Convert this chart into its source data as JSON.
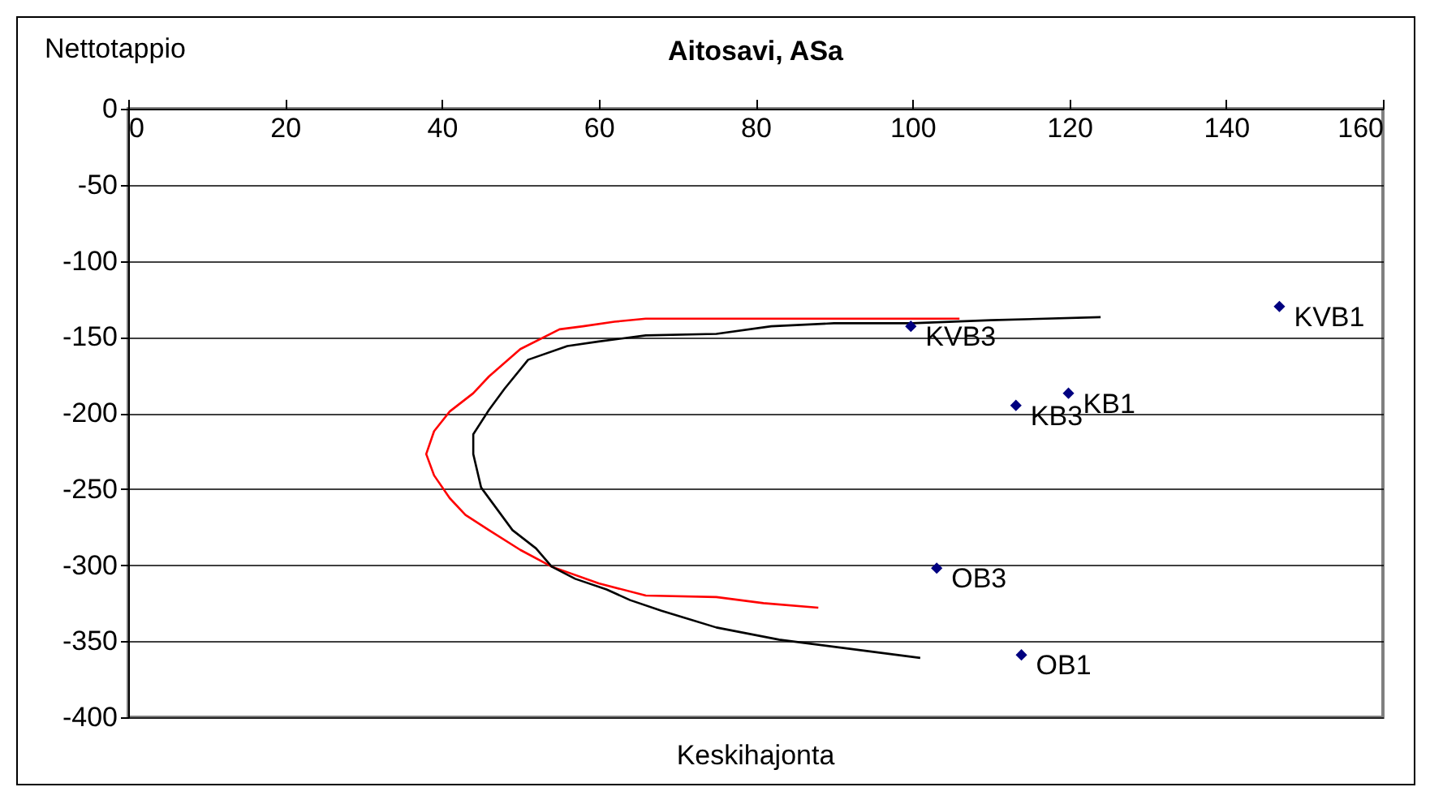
{
  "chart_data": {
    "type": "line",
    "title": "Aitosavi, ASa",
    "xlabel": "Keskihajonta",
    "ylabel": "Nettotappio",
    "xlim": [
      0,
      160
    ],
    "xticks": [
      0,
      20,
      40,
      60,
      80,
      100,
      120,
      140,
      160
    ],
    "ylim": [
      -400,
      0
    ],
    "yticks": [
      0,
      -50,
      -100,
      -150,
      -200,
      -250,
      -300,
      -350,
      -400
    ],
    "grid": "y",
    "series": [
      {
        "color": "#ff0000",
        "x": [
          106,
          100,
          90,
          80,
          71,
          66,
          62,
          58,
          55,
          50,
          46,
          44,
          41,
          39,
          38,
          39,
          41,
          43,
          46,
          50,
          54,
          60,
          66,
          75,
          81,
          88
        ],
        "values": [
          -138,
          -138,
          -138,
          -138,
          -138,
          -138,
          -140,
          -143,
          -145,
          -158,
          -176,
          -187,
          -199,
          -212,
          -227,
          -241,
          -256,
          -267,
          -277,
          -290,
          -301,
          -312,
          -320,
          -321,
          -325,
          -328
        ]
      },
      {
        "color": "#000000",
        "x": [
          124,
          110,
          100,
          90,
          82,
          75,
          66,
          60,
          56,
          51,
          48,
          46,
          44,
          44,
          44,
          45,
          47,
          49,
          52,
          54,
          57,
          61,
          64,
          68,
          75,
          83,
          92,
          101
        ],
        "values": [
          -137,
          -139,
          -141,
          -141,
          -143,
          -148,
          -149,
          -153,
          -156,
          -165,
          -184,
          -198,
          -214,
          -220,
          -227,
          -249,
          -263,
          -277,
          -289,
          -301,
          -309,
          -316,
          -323,
          -330,
          -341,
          -349,
          -355,
          -361
        ]
      },
      {
        "type": "scatter",
        "color": "#000080",
        "marker": "diamond",
        "x": [
          99.8,
          146.8,
          119.9,
          113.2,
          103.1,
          113.9
        ],
        "values": [
          -143,
          -130,
          -187,
          -195,
          -302,
          -359
        ]
      }
    ],
    "annotations": [
      {
        "text": "KVB3",
        "x": 99.8,
        "y": -143
      },
      {
        "text": "KVB1",
        "x": 146.8,
        "y": -130
      },
      {
        "text": "KB1",
        "x": 119.9,
        "y": -187
      },
      {
        "text": "KB3",
        "x": 113.2,
        "y": -195
      },
      {
        "text": "OB3",
        "x": 103.1,
        "y": -302
      },
      {
        "text": "OB1",
        "x": 113.9,
        "y": -359
      }
    ]
  }
}
